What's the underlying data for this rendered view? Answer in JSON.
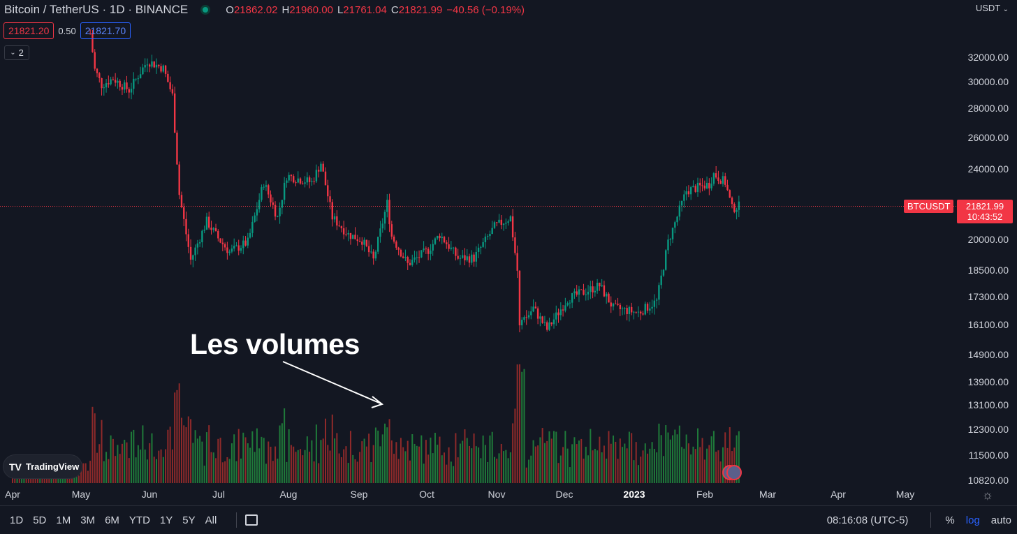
{
  "header": {
    "title": "Bitcoin / TetherUS · 1D · BINANCE",
    "ohlc": {
      "o_label": "O",
      "o": "21862.02",
      "h_label": "H",
      "h": "21960.00",
      "l_label": "L",
      "l": "21761.04",
      "c_label": "C",
      "c": "21821.99",
      "change": "−40.56 (−0.19%)"
    }
  },
  "quotes": {
    "sell": "21821.20",
    "spread": "0.50",
    "buy": "21821.70"
  },
  "indicators": {
    "count": "2"
  },
  "annotation": "Les volumes",
  "brand": "TradingView",
  "price_axis": {
    "currency": "USDT",
    "ticks": [
      "32000.00",
      "30000.00",
      "28000.00",
      "26000.00",
      "24000.00",
      "20000.00",
      "18500.00",
      "17300.00",
      "16100.00",
      "14900.00",
      "13900.00",
      "13100.00",
      "12300.00",
      "11500.00",
      "10820.00"
    ]
  },
  "last_price": {
    "symbol": "BTCUSDT",
    "price": "21821.99",
    "countdown": "10:43:52"
  },
  "time_axis": [
    "Apr",
    "May",
    "Jun",
    "Jul",
    "Aug",
    "Sep",
    "Oct",
    "Nov",
    "Dec",
    "2023",
    "Feb",
    "Mar",
    "Apr",
    "May"
  ],
  "toolbar": {
    "ranges": [
      "1D",
      "5D",
      "1M",
      "3M",
      "6M",
      "YTD",
      "1Y",
      "5Y",
      "All"
    ],
    "clock": "08:16:08 (UTC-5)",
    "percent": "%",
    "log": "log",
    "auto": "auto"
  },
  "colors": {
    "up": "#089981",
    "down": "#f23645",
    "volume_up": "#1f7a3a",
    "volume_down": "#8f2a2a",
    "background": "#131722"
  },
  "chart_data": {
    "type": "candlestick",
    "symbol": "BTCUSDT",
    "interval": "1D",
    "scale": "log",
    "series": {
      "price_path": [
        {
          "x": "2022-05-05",
          "y": 34000
        },
        {
          "x": "2022-05-07",
          "y": 31000
        },
        {
          "x": "2022-05-10",
          "y": 29800
        },
        {
          "x": "2022-05-15",
          "y": 30300
        },
        {
          "x": "2022-05-22",
          "y": 29400
        },
        {
          "x": "2022-05-30",
          "y": 31700
        },
        {
          "x": "2022-06-06",
          "y": 31100
        },
        {
          "x": "2022-06-10",
          "y": 29000
        },
        {
          "x": "2022-06-13",
          "y": 22500
        },
        {
          "x": "2022-06-18",
          "y": 19000
        },
        {
          "x": "2022-06-25",
          "y": 21000
        },
        {
          "x": "2022-06-30",
          "y": 20100
        },
        {
          "x": "2022-07-05",
          "y": 19400
        },
        {
          "x": "2022-07-13",
          "y": 19900
        },
        {
          "x": "2022-07-20",
          "y": 23200
        },
        {
          "x": "2022-07-26",
          "y": 21200
        },
        {
          "x": "2022-07-30",
          "y": 23600
        },
        {
          "x": "2022-08-10",
          "y": 23200
        },
        {
          "x": "2022-08-14",
          "y": 24400
        },
        {
          "x": "2022-08-19",
          "y": 21200
        },
        {
          "x": "2022-08-26",
          "y": 20300
        },
        {
          "x": "2022-09-01",
          "y": 20000
        },
        {
          "x": "2022-09-06",
          "y": 19000
        },
        {
          "x": "2022-09-12",
          "y": 22000
        },
        {
          "x": "2022-09-14",
          "y": 20200
        },
        {
          "x": "2022-09-21",
          "y": 18800
        },
        {
          "x": "2022-09-30",
          "y": 19500
        },
        {
          "x": "2022-10-05",
          "y": 20300
        },
        {
          "x": "2022-10-13",
          "y": 19100
        },
        {
          "x": "2022-10-20",
          "y": 19100
        },
        {
          "x": "2022-10-29",
          "y": 20700
        },
        {
          "x": "2022-11-05",
          "y": 21200
        },
        {
          "x": "2022-11-08",
          "y": 18500
        },
        {
          "x": "2022-11-09",
          "y": 16000
        },
        {
          "x": "2022-11-15",
          "y": 16800
        },
        {
          "x": "2022-11-21",
          "y": 15900
        },
        {
          "x": "2022-11-30",
          "y": 17200
        },
        {
          "x": "2022-12-14",
          "y": 17800
        },
        {
          "x": "2022-12-20",
          "y": 16800
        },
        {
          "x": "2022-12-31",
          "y": 16600
        },
        {
          "x": "2023-01-08",
          "y": 17100
        },
        {
          "x": "2023-01-13",
          "y": 19900
        },
        {
          "x": "2023-01-21",
          "y": 22700
        },
        {
          "x": "2023-01-31",
          "y": 23100
        },
        {
          "x": "2023-02-02",
          "y": 23700
        },
        {
          "x": "2023-02-07",
          "y": 23200
        },
        {
          "x": "2023-02-10",
          "y": 21700
        },
        {
          "x": "2023-02-13",
          "y": 21822
        }
      ]
    },
    "volume_range": [
      0,
      1
    ]
  }
}
